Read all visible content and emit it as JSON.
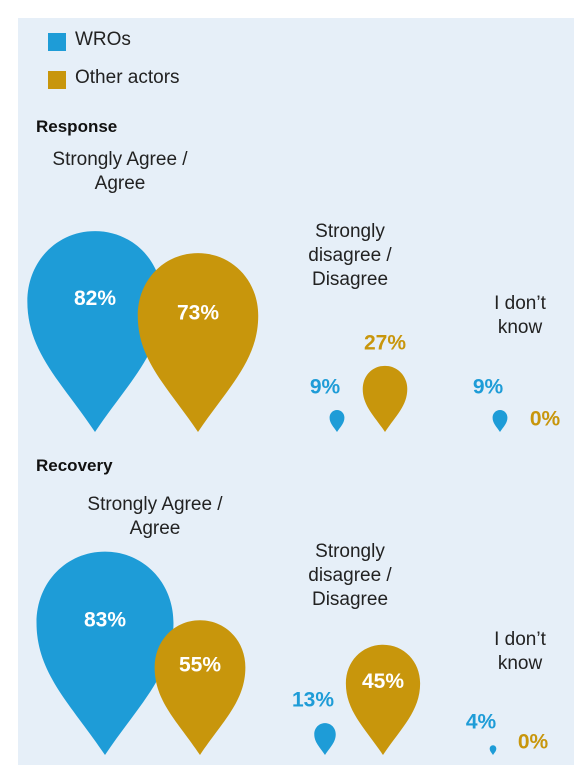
{
  "chart_data": {
    "type": "drop",
    "series": [
      {
        "name": "WROs",
        "color": "#1e9cd7"
      },
      {
        "name": "Other actors",
        "color": "#c8960c"
      }
    ],
    "panels": [
      {
        "title": "Response",
        "categories": [
          "Strongly Agree / Agree",
          "Strongly disagree / Disagree",
          "I don’t know"
        ],
        "series": [
          {
            "values": [
              82,
              9,
              9
            ],
            "value_labels": [
              "82%",
              "9%",
              "9%"
            ]
          },
          {
            "values": [
              73,
              27,
              0
            ],
            "value_labels": [
              "73%",
              "27%",
              "0%"
            ]
          }
        ]
      },
      {
        "title": "Recovery",
        "categories": [
          "Strongly Agree / Agree",
          "Strongly disagree / Disagree",
          "I don’t know"
        ],
        "series": [
          {
            "values": [
              83,
              13,
              4
            ],
            "value_labels": [
              "83%",
              "13%",
              "4%"
            ]
          },
          {
            "values": [
              55,
              45,
              0
            ],
            "value_labels": [
              "55%",
              "45%",
              "0%"
            ]
          }
        ]
      }
    ]
  }
}
